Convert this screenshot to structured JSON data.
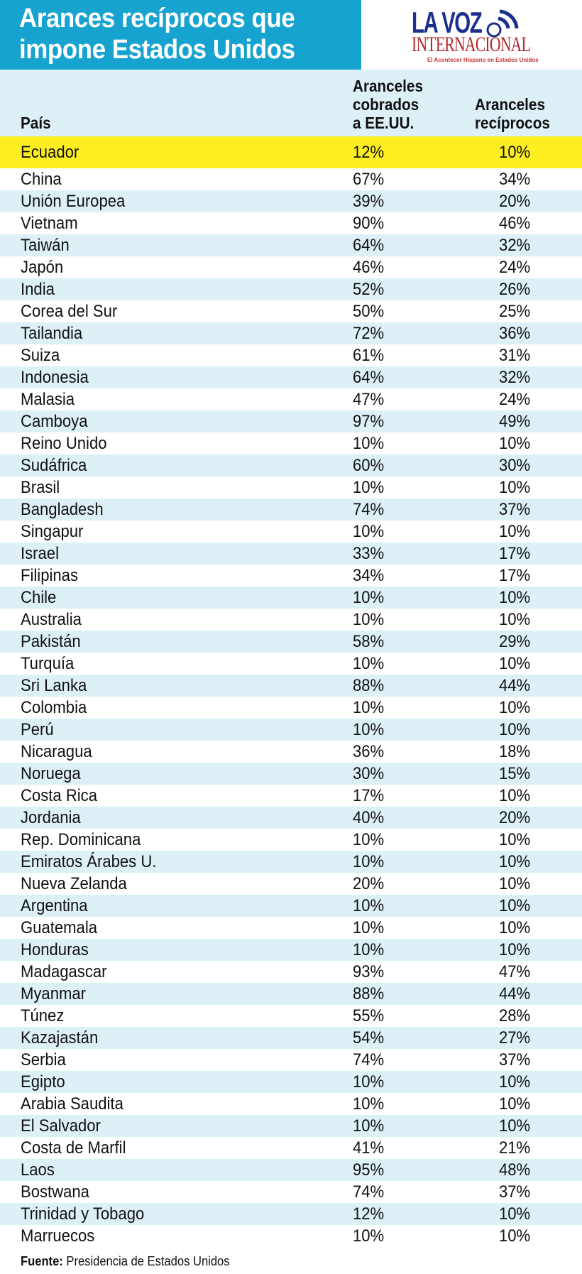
{
  "title_lines": [
    "Arances recíprocos que",
    "impone Estados Unidos"
  ],
  "logo": {
    "line1": "LA VOZ",
    "line2": "INTERNACIONAL",
    "tagline": "El Acontecer Hispano en Estados Unidos"
  },
  "headers": {
    "country": "País",
    "charged": [
      "Aranceles",
      "cobrados",
      "a EE.UU."
    ],
    "reciprocal": [
      "Aranceles",
      "recíprocos"
    ]
  },
  "colors": {
    "title_bg": "#16a3d0",
    "stripe": "#dcf0f6",
    "highlight": "#fdee21"
  },
  "rows": [
    {
      "country": "Ecuador",
      "charged": "12%",
      "reciprocal": "10%",
      "highlight": true
    },
    {
      "country": "China",
      "charged": "67%",
      "reciprocal": "34%"
    },
    {
      "country": "Unión Europea",
      "charged": "39%",
      "reciprocal": "20%"
    },
    {
      "country": "Vietnam",
      "charged": "90%",
      "reciprocal": "46%"
    },
    {
      "country": "Taiwán",
      "charged": "64%",
      "reciprocal": "32%"
    },
    {
      "country": "Japón",
      "charged": "46%",
      "reciprocal": "24%"
    },
    {
      "country": "India",
      "charged": "52%",
      "reciprocal": "26%"
    },
    {
      "country": "Corea del Sur",
      "charged": "50%",
      "reciprocal": "25%"
    },
    {
      "country": "Tailandia",
      "charged": "72%",
      "reciprocal": "36%"
    },
    {
      "country": "Suiza",
      "charged": "61%",
      "reciprocal": "31%"
    },
    {
      "country": "Indonesia",
      "charged": "64%",
      "reciprocal": "32%"
    },
    {
      "country": "Malasia",
      "charged": "47%",
      "reciprocal": "24%"
    },
    {
      "country": "Camboya",
      "charged": "97%",
      "reciprocal": "49%"
    },
    {
      "country": "Reino Unido",
      "charged": "10%",
      "reciprocal": "10%"
    },
    {
      "country": "Sudáfrica",
      "charged": "60%",
      "reciprocal": "30%"
    },
    {
      "country": "Brasil",
      "charged": "10%",
      "reciprocal": "10%"
    },
    {
      "country": "Bangladesh",
      "charged": "74%",
      "reciprocal": "37%"
    },
    {
      "country": "Singapur",
      "charged": "10%",
      "reciprocal": "10%"
    },
    {
      "country": "Israel",
      "charged": "33%",
      "reciprocal": "17%"
    },
    {
      "country": "Filipinas",
      "charged": "34%",
      "reciprocal": "17%"
    },
    {
      "country": "Chile",
      "charged": "10%",
      "reciprocal": "10%"
    },
    {
      "country": "Australia",
      "charged": "10%",
      "reciprocal": "10%"
    },
    {
      "country": "Pakistán",
      "charged": "58%",
      "reciprocal": "29%"
    },
    {
      "country": "Turquía",
      "charged": "10%",
      "reciprocal": "10%"
    },
    {
      "country": "Sri Lanka",
      "charged": "88%",
      "reciprocal": "44%"
    },
    {
      "country": "Colombia",
      "charged": "10%",
      "reciprocal": "10%"
    },
    {
      "country": "Perú",
      "charged": "10%",
      "reciprocal": "10%"
    },
    {
      "country": "Nicaragua",
      "charged": "36%",
      "reciprocal": "18%"
    },
    {
      "country": "Noruega",
      "charged": "30%",
      "reciprocal": "15%"
    },
    {
      "country": "Costa Rica",
      "charged": "17%",
      "reciprocal": "10%"
    },
    {
      "country": "Jordania",
      "charged": "40%",
      "reciprocal": "20%"
    },
    {
      "country": "Rep. Dominicana",
      "charged": "10%",
      "reciprocal": "10%"
    },
    {
      "country": "Emiratos Árabes U.",
      "charged": "10%",
      "reciprocal": "10%"
    },
    {
      "country": "Nueva Zelanda",
      "charged": "20%",
      "reciprocal": "10%"
    },
    {
      "country": "Argentina",
      "charged": "10%",
      "reciprocal": "10%"
    },
    {
      "country": "Guatemala",
      "charged": "10%",
      "reciprocal": "10%"
    },
    {
      "country": "Honduras",
      "charged": "10%",
      "reciprocal": "10%"
    },
    {
      "country": "Madagascar",
      "charged": "93%",
      "reciprocal": "47%"
    },
    {
      "country": "Myanmar",
      "charged": "88%",
      "reciprocal": "44%"
    },
    {
      "country": "Túnez",
      "charged": "55%",
      "reciprocal": "28%"
    },
    {
      "country": "Kazajastán",
      "charged": "54%",
      "reciprocal": "27%"
    },
    {
      "country": "Serbia",
      "charged": "74%",
      "reciprocal": "37%"
    },
    {
      "country": "Egipto",
      "charged": "10%",
      "reciprocal": "10%"
    },
    {
      "country": "Arabia Saudita",
      "charged": "10%",
      "reciprocal": "10%"
    },
    {
      "country": "El Salvador",
      "charged": "10%",
      "reciprocal": "10%"
    },
    {
      "country": "Costa de Marfil",
      "charged": "41%",
      "reciprocal": "21%"
    },
    {
      "country": "Laos",
      "charged": "95%",
      "reciprocal": "48%"
    },
    {
      "country": "Bostwana",
      "charged": "74%",
      "reciprocal": "37%"
    },
    {
      "country": "Trinidad y Tobago",
      "charged": "12%",
      "reciprocal": "10%"
    },
    {
      "country": "Marruecos",
      "charged": "10%",
      "reciprocal": "10%"
    }
  ],
  "footer": {
    "label": "Fuente:",
    "text": " Presidencia de Estados Unidos"
  }
}
